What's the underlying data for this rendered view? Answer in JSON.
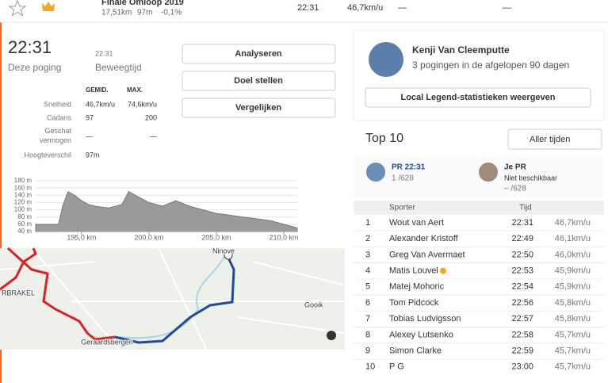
{
  "top_row": {
    "name": "Finale Omloop 2019",
    "distance": "17,51km",
    "elevation": "97m",
    "grade": "-0,1%",
    "time": "22:31",
    "speed": "46,7km/u",
    "col1": "—",
    "col2": "—"
  },
  "effort": {
    "time": "22:31",
    "time_label": "Deze poging",
    "moving_time": "22:31",
    "moving_label": "Beweegtijd"
  },
  "stats": {
    "headers": [
      "GEMID.",
      "MAX."
    ],
    "rows": [
      [
        "Snelheid",
        "46,7km/u",
        "74,6km/u"
      ],
      [
        "Cadans",
        "97",
        "200"
      ],
      [
        "Geschat vermogen",
        "—",
        "—"
      ],
      [
        "Hoogteverschil",
        "97m",
        null
      ]
    ]
  },
  "buttons": [
    "Analyseren",
    "Doel stellen",
    "Vergelijken"
  ],
  "chart_data": {
    "type": "area",
    "x": [
      191.6,
      193.3,
      193.6,
      194.0,
      194.5,
      195.0,
      195.5,
      196.0,
      197.0,
      198.0,
      198.5,
      199.0,
      199.5,
      200.0,
      201.0,
      202.0,
      203.0,
      204.0,
      205.0,
      206.0,
      207.0,
      208.0,
      209.0,
      210.0,
      211.0
    ],
    "values": [
      60,
      60,
      110,
      150,
      140,
      125,
      115,
      110,
      105,
      115,
      150,
      140,
      130,
      120,
      110,
      125,
      110,
      100,
      90,
      85,
      80,
      75,
      70,
      60,
      50
    ],
    "xlim": [
      191.6,
      211.0
    ],
    "ylim": [
      40,
      180
    ],
    "xticks": [
      {
        "value": 195,
        "label": "195,0 km"
      },
      {
        "value": 200,
        "label": "200,0 km"
      },
      {
        "value": 205,
        "label": "205,0 km"
      },
      {
        "value": 210,
        "label": "210,0 km"
      }
    ],
    "yticks": [
      {
        "value": 180,
        "label": "180 m"
      },
      {
        "value": 160,
        "label": "160 m"
      },
      {
        "value": 140,
        "label": "140 m"
      },
      {
        "value": 120,
        "label": "120 m"
      },
      {
        "value": 100,
        "label": "100 m"
      },
      {
        "value": 80,
        "label": "80 m"
      },
      {
        "value": 60,
        "label": "60 m"
      },
      {
        "value": 40,
        "label": "40 m"
      }
    ],
    "color": "#9a9a9a"
  },
  "map": {
    "labels": [
      "Ninove",
      "RBRAKEL",
      "Gooik",
      "Geraardsbergen"
    ]
  },
  "legend": {
    "name": "Kenji Van Cleemputte",
    "attempts": "3 pogingen in de afgelopen 90 dagen",
    "button": "Local Legend-statistieken weergeven"
  },
  "leaderboard": {
    "title": "Top 10",
    "filter": "Aller tijden",
    "pr": {
      "label": "PR 22:31",
      "rank": "1 /628"
    },
    "my_pr": {
      "label": "Je PR",
      "status": "Niet beschikbaar",
      "rank": "– /628"
    },
    "headers": [
      "Sporter",
      "Tijd"
    ],
    "rows": [
      [
        "1",
        "Wout van Aert",
        "22:31",
        "46,7km/u"
      ],
      [
        "2",
        "Alexander Kristoff",
        "22:49",
        "46,1km/u"
      ],
      [
        "3",
        "Greg Van Avermaet",
        "22:50",
        "46,0km/u"
      ],
      [
        "4",
        "Matis Louvel",
        "22:53",
        "45,9km/u"
      ],
      [
        "5",
        "Matej Mohoric",
        "22:54",
        "45,9km/u"
      ],
      [
        "6",
        "Tom Pidcock",
        "22:56",
        "45,8km/u"
      ],
      [
        "7",
        "Tobias Ludvigsson",
        "22:57",
        "45,8km/u"
      ],
      [
        "8",
        "Alexey Lutsenko",
        "22:58",
        "45,7km/u"
      ],
      [
        "9",
        "Simon Clarke",
        "22:59",
        "45,7km/u"
      ],
      [
        "10",
        "P G",
        "23:00",
        "45,7km/u"
      ]
    ]
  }
}
